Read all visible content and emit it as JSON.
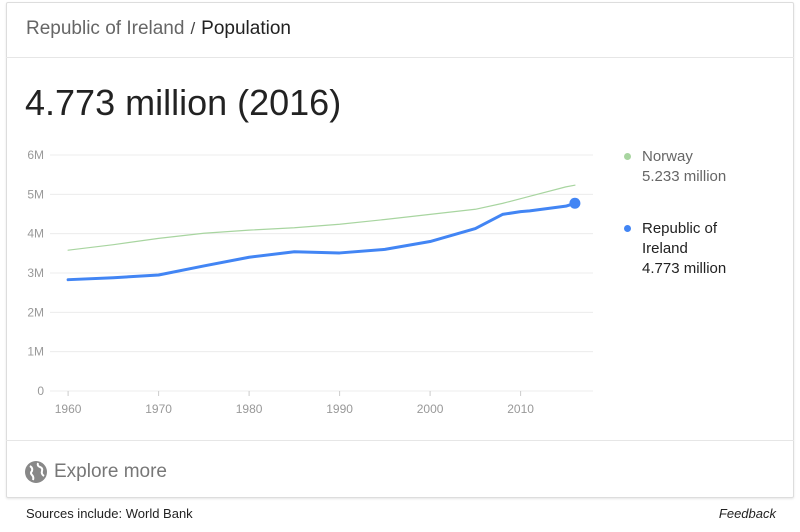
{
  "header": {
    "entity": "Republic of Ireland",
    "separator": "/",
    "topic": "Population"
  },
  "headline": "4.773 million (2016)",
  "chart_data": {
    "type": "line",
    "x": [
      1960,
      1965,
      1970,
      1975,
      1980,
      1985,
      1990,
      1995,
      2000,
      2005,
      2008,
      2010,
      2011,
      2015,
      2016
    ],
    "series": [
      {
        "name": "Norway",
        "color": "#a8d5a0",
        "latest_label": "5.233 million",
        "values": [
          3.58,
          3.72,
          3.88,
          4.01,
          4.09,
          4.15,
          4.24,
          4.36,
          4.49,
          4.62,
          4.77,
          4.89,
          4.95,
          5.19,
          5.233
        ]
      },
      {
        "name": "Republic of Ireland",
        "color": "#4285f4",
        "latest_label": "4.773 million",
        "values": [
          2.83,
          2.88,
          2.95,
          3.18,
          3.4,
          3.54,
          3.51,
          3.6,
          3.8,
          4.13,
          4.49,
          4.56,
          4.58,
          4.7,
          4.773
        ]
      }
    ],
    "xlim": [
      1958,
      2018
    ],
    "xticks": [
      1960,
      1970,
      1980,
      1990,
      2000,
      2010
    ],
    "ylim": [
      0,
      6
    ],
    "yticks": [
      0,
      {
        "value": 1,
        "label": "1M"
      },
      {
        "value": 2,
        "label": "2M"
      },
      {
        "value": 3,
        "label": "3M"
      },
      {
        "value": 4,
        "label": "4M"
      },
      {
        "value": 5,
        "label": "5M"
      },
      {
        "value": 6,
        "label": "6M"
      }
    ],
    "grid": true
  },
  "explore": "Explore more",
  "footer": {
    "sources": "Sources include: World Bank",
    "feedback": "Feedback"
  }
}
